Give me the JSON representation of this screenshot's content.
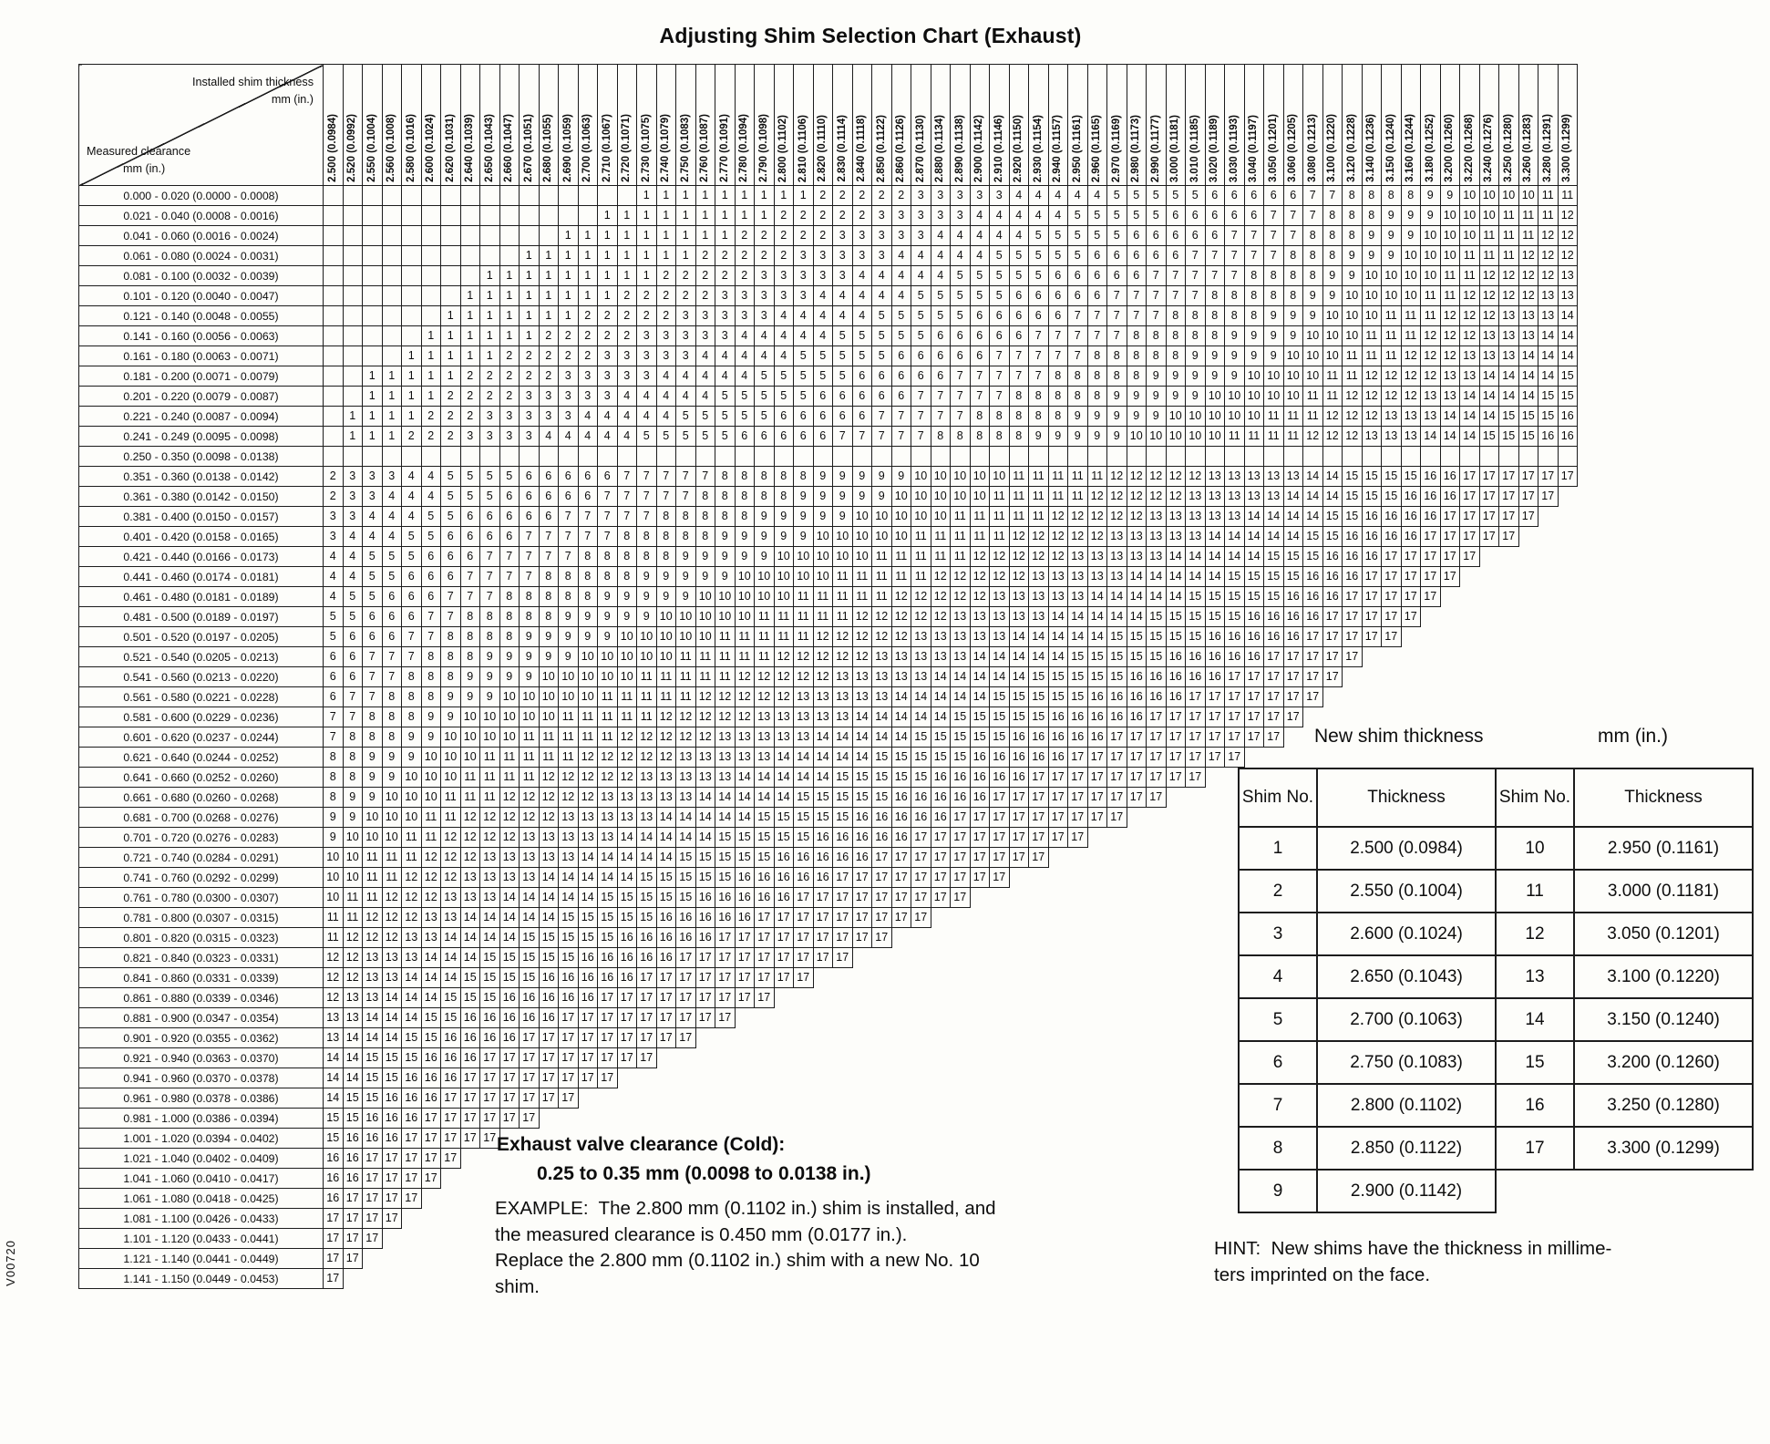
{
  "page": {
    "title": "Adjusting Shim Selection Chart (Exhaust)",
    "side_code": "V00720"
  },
  "chart": {
    "corner": {
      "top_label": "Installed shim thickness",
      "top_unit": "mm (in.)",
      "bottom_label": "Measured clearance",
      "bottom_unit": "mm (in.)"
    },
    "columns": [
      "2.500 (0.0984)",
      "2.520 (0.0992)",
      "2.550 (0.1004)",
      "2.560 (0.1008)",
      "2.580 (0.1016)",
      "2.600 (0.1024)",
      "2.620 (0.1031)",
      "2.640 (0.1039)",
      "2.650 (0.1043)",
      "2.660 (0.1047)",
      "2.670 (0.1051)",
      "2.680 (0.1055)",
      "2.690 (0.1059)",
      "2.700 (0.1063)",
      "2.710 (0.1067)",
      "2.720 (0.1071)",
      "2.730 (0.1075)",
      "2.740 (0.1079)",
      "2.750 (0.1083)",
      "2.760 (0.1087)",
      "2.770 (0.1091)",
      "2.780 (0.1094)",
      "2.790 (0.1098)",
      "2.800 (0.1102)",
      "2.810 (0.1106)",
      "2.820 (0.1110)",
      "2.830 (0.1114)",
      "2.840 (0.1118)",
      "2.850 (0.1122)",
      "2.860 (0.1126)",
      "2.870 (0.1130)",
      "2.880 (0.1134)",
      "2.890 (0.1138)",
      "2.900 (0.1142)",
      "2.910 (0.1146)",
      "2.920 (0.1150)",
      "2.930 (0.1154)",
      "2.940 (0.1157)",
      "2.950 (0.1161)",
      "2.960 (0.1165)",
      "2.970 (0.1169)",
      "2.980 (0.1173)",
      "2.990 (0.1177)",
      "3.000 (0.1181)",
      "3.010 (0.1185)",
      "3.020 (0.1189)",
      "3.030 (0.1193)",
      "3.040 (0.1197)",
      "3.050 (0.1201)",
      "3.060 (0.1205)",
      "3.080 (0.1213)",
      "3.100 (0.1220)",
      "3.120 (0.1228)",
      "3.140 (0.1236)",
      "3.150 (0.1240)",
      "3.160 (0.1244)",
      "3.180 (0.1252)",
      "3.200 (0.1260)",
      "3.220 (0.1268)",
      "3.240 (0.1276)",
      "3.250 (0.1280)",
      "3.260 (0.1283)",
      "3.280 (0.1291)",
      "3.300 (0.1299)"
    ],
    "rows": [
      [
        "0.000 - 0.020 (0.0000 - 0.0008)",
        ". . . . . . . . . . . . . . . . 1 1 1 1 1 1 1 1 1 2 2 2 2 2 3 3 3 3 3 4 4 4 4 4 5 5 5 5 5 6 6 6 6 6 7 7 8 8 8 8 9 9 10 10 10 10 11 11"
      ],
      [
        "0.021 - 0.040 (0.0008 - 0.0016)",
        ". . . . . . . . . . . . . . 1 1 1 1 1 1 1 1 1 2 2 2 2 2 3 3 3 3 3 4 4 4 4 4 5 5 5 5 5 6 6 6 6 6 7 7 7 8 8 8 9 9 9 10 10 10 11 11 11 12"
      ],
      [
        "0.041 - 0.060 (0.0016 - 0.0024)",
        ". . . . . . . . . . . . 1 1 1 1 1 1 1 1 1 2 2 2 2 2 3 3 3 3 3 4 4 4 4 4 5 5 5 5 5 6 6 6 6 6 7 7 7 7 8 8 8 9 9 9 10 10 10 11 11 11 12 12"
      ],
      [
        "0.061 - 0.080 (0.0024 - 0.0031)",
        ". . . . . . . . . . 1 1 1 1 1 1 1 1 1 2 2 2 2 2 3 3 3 3 3 4 4 4 4 4 5 5 5 5 5 6 6 6 6 6 7 7 7 7 7 8 8 8 9 9 9 10 10 10 11 11 11 12 12 12"
      ],
      [
        "0.081 - 0.100 (0.0032 - 0.0039)",
        ". . . . . . . . 1 1 1 1 1 1 1 1 1 2 2 2 2 2 3 3 3 3 3 4 4 4 4 4 5 5 5 5 5 6 6 6 6 6 7 7 7 7 7 8 8 8 8 9 9 10 10 10 10 11 11 12 12 12 12 13"
      ],
      [
        "0.101 - 0.120 (0.0040 - 0.0047)",
        ". . . . . . . 1 1 1 1 1 1 1 1 2 2 2 2 2 3 3 3 3 3 4 4 4 4 4 5 5 5 5 5 6 6 6 6 6 7 7 7 7 7 8 8 8 8 8 9 9 10 10 10 10 11 11 12 12 12 12 13 13"
      ],
      [
        "0.121 - 0.140 (0.0048 - 0.0055)",
        ". . . . . . 1 1 1 1 1 1 1 2 2 2 2 2 3 3 3 3 3 4 4 4 4 4 5 5 5 5 5 6 6 6 6 6 7 7 7 7 7 8 8 8 8 8 9 9 9 10 10 10 11 11 11 12 12 12 13 13 13 14"
      ],
      [
        "0.141 - 0.160 (0.0056 - 0.0063)",
        ". . . . . 1 1 1 1 1 1 2 2 2 2 2 3 3 3 3 3 4 4 4 4 4 5 5 5 5 5 6 6 6 6 6 7 7 7 7 7 8 8 8 8 8 9 9 9 9 10 10 10 11 11 11 12 12 12 13 13 13 14 14"
      ],
      [
        "0.161 - 0.180 (0.0063 - 0.0071)",
        ". . . . 1 1 1 1 1 2 2 2 2 2 3 3 3 3 3 4 4 4 4 4 5 5 5 5 5 6 6 6 6 6 7 7 7 7 7 8 8 8 8 8 9 9 9 9 9 10 10 10 11 11 11 12 12 12 13 13 13 14 14 14"
      ],
      [
        "0.181 - 0.200 (0.0071 - 0.0079)",
        ". . 1 1 1 1 1 2 2 2 2 2 3 3 3 3 3 4 4 4 4 4 5 5 5 5 5 6 6 6 6 6 7 7 7 7 7 8 8 8 8 8 9 9 9 9 9 10 10 10 10 11 11 12 12 12 12 13 13 14 14 14 14 15"
      ],
      [
        "0.201 - 0.220 (0.0079 - 0.0087)",
        ". . 1 1 1 1 2 2 2 2 3 3 3 3 3 4 4 4 4 4 5 5 5 5 5 6 6 6 6 6 7 7 7 7 7 8 8 8 8 8 9 9 9 9 9 10 10 10 10 10 11 11 12 12 12 12 13 13 14 14 14 14 15 15"
      ],
      [
        "0.221 - 0.240 (0.0087 - 0.0094)",
        ". 1 1 1 1 2 2 2 3 3 3 3 3 4 4 4 4 4 5 5 5 5 5 6 6 6 6 6 7 7 7 7 7 8 8 8 8 8 9 9 9 9 9 10 10 10 10 10 11 11 11 12 12 12 13 13 13 14 14 14 15 15 15 16"
      ],
      [
        "0.241 - 0.249 (0.0095 - 0.0098)",
        ". 1 1 1 2 2 2 3 3 3 3 4 4 4 4 4 5 5 5 5 5 6 6 6 6 6 7 7 7 7 7 8 8 8 8 8 9 9 9 9 9 10 10 10 10 10 11 11 11 11 12 12 12 13 13 13 14 14 14 15 15 15 16 16"
      ],
      [
        "0.250 - 0.350 (0.0098 - 0.0138)",
        ". . . . . . . . . . . . . . . . . . . . . . . . . . . . . . . . . . . . . . . . . . . . . . . . . . . . . . . . . . . . . . . ."
      ],
      [
        "0.351 - 0.360 (0.0138 - 0.0142)",
        "2 3 3 3 4 4 5 5 5 5 6 6 6 6 6 7 7 7 7 7 8 8 8 8 8 9 9 9 9 9 10 10 10 10 10 11 11 11 11 11 12 12 12 12 12 13 13 13 13 13 14 14 15 15 15 15 16 16 17 17 17 17 17 17"
      ],
      [
        "0.361 - 0.380 (0.0142 - 0.0150)",
        "2 3 3 4 4 4 5 5 5 6 6 6 6 6 7 7 7 7 7 8 8 8 8 8 9 9 9 9 9 10 10 10 10 10 11 11 11 11 11 12 12 12 12 12 13 13 13 13 13 14 14 14 15 15 15 16 16 16 17 17 17 17 17"
      ],
      [
        "0.381 - 0.400 (0.0150 - 0.0157)",
        "3 3 4 4 4 5 5 6 6 6 6 6 7 7 7 7 7 8 8 8 8 8 9 9 9 9 9 10 10 10 10 10 11 11 11 11 11 12 12 12 12 12 13 13 13 13 13 14 14 14 14 15 15 16 16 16 16 17 17 17 17 17"
      ],
      [
        "0.401 - 0.420 (0.0158 - 0.0165)",
        "3 4 4 4 5 5 6 6 6 6 7 7 7 7 7 8 8 8 8 8 9 9 9 9 9 10 10 10 10 10 11 11 11 11 11 12 12 12 12 12 13 13 13 13 13 14 14 14 14 14 15 15 16 16 16 16 17 17 17 17 17"
      ],
      [
        "0.421 - 0.440 (0.0166 - 0.0173)",
        "4 4 5 5 5 6 6 6 7 7 7 7 7 8 8 8 8 8 9 9 9 9 9 10 10 10 10 10 11 11 11 11 11 12 12 12 12 12 13 13 13 13 13 14 14 14 14 14 15 15 15 16 16 16 17 17 17 17 17"
      ],
      [
        "0.441 - 0.460 (0.0174 - 0.0181)",
        "4 4 5 5 6 6 6 7 7 7 7 8 8 8 8 8 9 9 9 9 9 10 10 10 10 10 11 11 11 11 11 12 12 12 12 12 13 13 13 13 13 14 14 14 14 14 15 15 15 15 16 16 16 17 17 17 17 17"
      ],
      [
        "0.461 - 0.480 (0.0181 - 0.0189)",
        "4 5 5 6 6 6 7 7 7 8 8 8 8 8 9 9 9 9 9 10 10 10 10 10 11 11 11 11 11 12 12 12 12 12 13 13 13 13 13 14 14 14 14 14 15 15 15 15 15 16 16 16 17 17 17 17 17"
      ],
      [
        "0.481 - 0.500 (0.0189 - 0.0197)",
        "5 5 6 6 6 7 7 8 8 8 8 8 9 9 9 9 9 10 10 10 10 10 11 11 11 11 11 12 12 12 12 12 13 13 13 13 13 14 14 14 14 14 15 15 15 15 15 16 16 16 16 17 17 17 17 17"
      ],
      [
        "0.501 - 0.520 (0.0197 - 0.0205)",
        "5 6 6 6 7 7 8 8 8 8 9 9 9 9 9 10 10 10 10 10 11 11 11 11 11 12 12 12 12 12 13 13 13 13 13 14 14 14 14 14 15 15 15 15 15 16 16 16 16 16 17 17 17 17 17"
      ],
      [
        "0.521 - 0.540 (0.0205 - 0.0213)",
        "6 6 7 7 7 8 8 8 9 9 9 9 9 10 10 10 10 10 11 11 11 11 11 12 12 12 12 12 13 13 13 13 13 14 14 14 14 14 15 15 15 15 15 16 16 16 16 16 17 17 17 17 17"
      ],
      [
        "0.541 - 0.560 (0.0213 - 0.0220)",
        "6 6 7 7 8 8 8 9 9 9 9 10 10 10 10 10 11 11 11 11 11 12 12 12 12 12 13 13 13 13 13 14 14 14 14 14 15 15 15 15 15 16 16 16 16 16 17 17 17 17 17 17"
      ],
      [
        "0.561 - 0.580 (0.0221 - 0.0228)",
        "6 7 7 8 8 8 9 9 9 10 10 10 10 10 11 11 11 11 11 12 12 12 12 12 13 13 13 13 13 14 14 14 14 14 15 15 15 15 15 16 16 16 16 16 17 17 17 17 17 17 17"
      ],
      [
        "0.581 - 0.600 (0.0229 - 0.0236)",
        "7 7 8 8 8 9 9 10 10 10 10 10 11 11 11 11 11 12 12 12 12 12 13 13 13 13 13 14 14 14 14 14 15 15 15 15 15 16 16 16 16 16 17 17 17 17 17 17 17 17"
      ],
      [
        "0.601 - 0.620 (0.0237 - 0.0244)",
        "7 8 8 8 9 9 10 10 10 10 11 11 11 11 11 12 12 12 12 12 13 13 13 13 13 14 14 14 14 14 15 15 15 15 15 16 16 16 16 16 17 17 17 17 17 17 17 17 17"
      ],
      [
        "0.621 - 0.640 (0.0244 - 0.0252)",
        "8 8 9 9 9 10 10 10 11 11 11 11 11 12 12 12 12 12 13 13 13 13 13 14 14 14 14 14 15 15 15 15 15 16 16 16 16 16 17 17 17 17 17 17 17 17 17"
      ],
      [
        "0.641 - 0.660 (0.0252 - 0.0260)",
        "8 8 9 9 10 10 10 11 11 11 11 12 12 12 12 12 13 13 13 13 13 14 14 14 14 14 15 15 15 15 15 16 16 16 16 16 17 17 17 17 17 17 17 17 17"
      ],
      [
        "0.661 - 0.680 (0.0260 - 0.0268)",
        "8 9 9 10 10 10 11 11 11 12 12 12 12 12 13 13 13 13 13 14 14 14 14 14 15 15 15 15 15 16 16 16 16 16 17 17 17 17 17 17 17 17 17"
      ],
      [
        "0.681 - 0.700 (0.0268 - 0.0276)",
        "9 9 10 10 10 11 11 12 12 12 12 12 13 13 13 13 13 14 14 14 14 14 15 15 15 15 15 16 16 16 16 16 17 17 17 17 17 17 17 17 17"
      ],
      [
        "0.701 - 0.720 (0.0276 - 0.0283)",
        "9 10 10 10 11 11 12 12 12 12 13 13 13 13 13 14 14 14 14 14 15 15 15 15 15 16 16 16 16 16 17 17 17 17 17 17 17 17 17"
      ],
      [
        "0.721 - 0.740 (0.0284 - 0.0291)",
        "10 10 11 11 11 12 12 12 13 13 13 13 13 14 14 14 14 14 15 15 15 15 15 16 16 16 16 16 17 17 17 17 17 17 17 17 17"
      ],
      [
        "0.741 - 0.760 (0.0292 - 0.0299)",
        "10 10 11 11 12 12 12 13 13 13 13 14 14 14 14 14 15 15 15 15 15 16 16 16 16 16 17 17 17 17 17 17 17 17 17"
      ],
      [
        "0.761 - 0.780 (0.0300 - 0.0307)",
        "10 11 11 12 12 12 13 13 13 14 14 14 14 14 15 15 15 15 15 16 16 16 16 16 17 17 17 17 17 17 17 17 17"
      ],
      [
        "0.781 - 0.800 (0.0307 - 0.0315)",
        "11 11 12 12 12 13 13 14 14 14 14 14 15 15 15 15 15 16 16 16 16 16 17 17 17 17 17 17 17 17 17"
      ],
      [
        "0.801 - 0.820 (0.0315 - 0.0323)",
        "11 12 12 12 13 13 14 14 14 14 15 15 15 15 15 16 16 16 16 16 17 17 17 17 17 17 17 17 17"
      ],
      [
        "0.821 - 0.840 (0.0323 - 0.0331)",
        "12 12 13 13 13 14 14 14 15 15 15 15 15 16 16 16 16 16 17 17 17 17 17 17 17 17 17"
      ],
      [
        "0.841 - 0.860 (0.0331 - 0.0339)",
        "12 12 13 13 14 14 14 15 15 15 15 16 16 16 16 16 17 17 17 17 17 17 17 17 17"
      ],
      [
        "0.861 - 0.880 (0.0339 - 0.0346)",
        "12 13 13 14 14 14 15 15 15 16 16 16 16 16 17 17 17 17 17 17 17 17 17"
      ],
      [
        "0.881 - 0.900 (0.0347 - 0.0354)",
        "13 13 14 14 14 15 15 16 16 16 16 16 17 17 17 17 17 17 17 17 17"
      ],
      [
        "0.901 - 0.920 (0.0355 - 0.0362)",
        "13 14 14 14 15 15 16 16 16 16 17 17 17 17 17 17 17 17 17"
      ],
      [
        "0.921 - 0.940 (0.0363 - 0.0370)",
        "14 14 15 15 15 16 16 16 17 17 17 17 17 17 17 17 17"
      ],
      [
        "0.941 - 0.960 (0.0370 - 0.0378)",
        "14 14 15 15 16 16 16 17 17 17 17 17 17 17 17"
      ],
      [
        "0.961 - 0.980 (0.0378 - 0.0386)",
        "14 15 15 16 16 16 17 17 17 17 17 17 17"
      ],
      [
        "0.981 - 1.000 (0.0386 - 0.0394)",
        "15 15 16 16 16 17 17 17 17 17 17"
      ],
      [
        "1.001 - 1.020 (0.0394 - 0.0402)",
        "15 16 16 16 17 17 17 17 17"
      ],
      [
        "1.021 - 1.040 (0.0402 - 0.0409)",
        "16 16 17 17 17 17 17"
      ],
      [
        "1.041 - 1.060 (0.0410 - 0.0417)",
        "16 16 17 17 17 17"
      ],
      [
        "1.061 - 1.080 (0.0418 - 0.0425)",
        "16 17 17 17 17"
      ],
      [
        "1.081 - 1.100 (0.0426 - 0.0433)",
        "17 17 17 17"
      ],
      [
        "1.101 - 1.120 (0.0433 - 0.0441)",
        "17 17 17"
      ],
      [
        "1.121 - 1.140 (0.0441 - 0.0449)",
        "17 17"
      ],
      [
        "1.141 - 1.150 (0.0449 - 0.0453)",
        "17"
      ]
    ]
  },
  "new_shim": {
    "heading": "New shim thickness",
    "heading_unit": "mm (in.)",
    "headers": [
      "Shim No.",
      "Thickness",
      "Shim No.",
      "Thickness"
    ],
    "rows": [
      [
        "1",
        "2.500 (0.0984)",
        "10",
        "2.950 (0.1161)"
      ],
      [
        "2",
        "2.550 (0.1004)",
        "11",
        "3.000 (0.1181)"
      ],
      [
        "3",
        "2.600 (0.1024)",
        "12",
        "3.050 (0.1201)"
      ],
      [
        "4",
        "2.650 (0.1043)",
        "13",
        "3.100 (0.1220)"
      ],
      [
        "5",
        "2.700 (0.1063)",
        "14",
        "3.150 (0.1240)"
      ],
      [
        "6",
        "2.750 (0.1083)",
        "15",
        "3.200 (0.1260)"
      ],
      [
        "7",
        "2.800 (0.1102)",
        "16",
        "3.250 (0.1280)"
      ],
      [
        "8",
        "2.850 (0.1122)",
        "17",
        "3.300 (0.1299)"
      ],
      [
        "9",
        "2.900 (0.1142)",
        "",
        ""
      ]
    ]
  },
  "spec": {
    "heading": "Exhaust valve clearance (Cold):",
    "value": "0.25 to 0.35 mm (0.0098 to 0.0138 in.)"
  },
  "example": {
    "lines": [
      "EXAMPLE:  The 2.800 mm (0.1102 in.) shim is installed, and",
      "the measured clearance is 0.450 mm (0.0177 in.).",
      "Replace the 2.800 mm (0.1102 in.) shim with a new No. 10",
      "shim."
    ]
  },
  "hint": {
    "lines": [
      "HINT:  New shims have the thickness in millime-",
      "ters imprinted on the face."
    ]
  }
}
